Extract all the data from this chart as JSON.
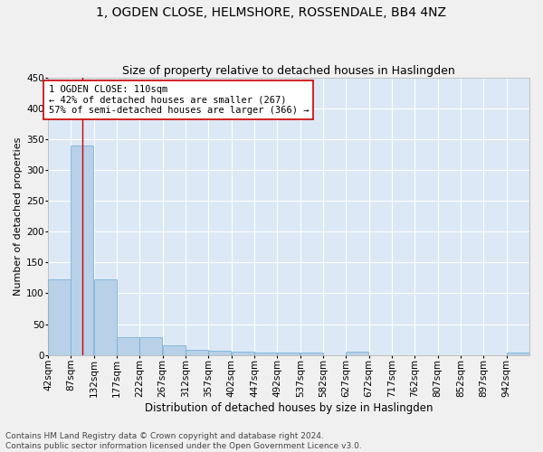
{
  "title": "1, OGDEN CLOSE, HELMSHORE, ROSSENDALE, BB4 4NZ",
  "subtitle": "Size of property relative to detached houses in Haslingden",
  "xlabel": "Distribution of detached houses by size in Haslingden",
  "ylabel": "Number of detached properties",
  "bin_edges": [
    42,
    87,
    132,
    177,
    222,
    267,
    312,
    357,
    402,
    447,
    492,
    537,
    582,
    627,
    672,
    717,
    762,
    807,
    852,
    897,
    942
  ],
  "bar_heights": [
    122,
    340,
    122,
    29,
    29,
    15,
    8,
    7,
    6,
    4,
    4,
    4,
    0,
    5,
    0,
    0,
    0,
    0,
    0,
    0,
    4
  ],
  "bar_color": "#b8d0e8",
  "bar_edge_color": "#6aabd2",
  "property_size": 110,
  "red_line_color": "#cc0000",
  "annotation_text": "1 OGDEN CLOSE: 110sqm\n← 42% of detached houses are smaller (267)\n57% of semi-detached houses are larger (366) →",
  "annotation_box_color": "#ffffff",
  "annotation_box_edge": "#cc0000",
  "ylim": [
    0,
    450
  ],
  "yticks": [
    0,
    50,
    100,
    150,
    200,
    250,
    300,
    350,
    400,
    450
  ],
  "background_color": "#dce8f5",
  "grid_color": "#ffffff",
  "fig_background": "#f0f0f0",
  "footnote": "Contains HM Land Registry data © Crown copyright and database right 2024.\nContains public sector information licensed under the Open Government Licence v3.0.",
  "title_fontsize": 10,
  "subtitle_fontsize": 9,
  "xlabel_fontsize": 8.5,
  "ylabel_fontsize": 8,
  "tick_fontsize": 7.5,
  "annotation_fontsize": 7.5,
  "footnote_fontsize": 6.5
}
